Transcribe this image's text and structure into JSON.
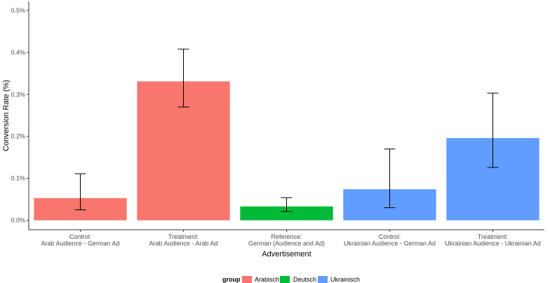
{
  "chart_data": {
    "type": "bar",
    "title": "",
    "xlabel": "Advertisement",
    "ylabel": "Conversion Rate (%)",
    "ylim": [
      0,
      0.5
    ],
    "y_ticks": [
      "0.0%",
      "0.1%",
      "0.2%",
      "0.3%",
      "0.4%",
      "0.5%"
    ],
    "y_tick_values": [
      0,
      0.1,
      0.2,
      0.3,
      0.4,
      0.5
    ],
    "categories": [
      [
        "Control:",
        "Arab Audience - German Ad"
      ],
      [
        "Treatment:",
        "Arab Audience - Arab Ad"
      ],
      [
        "Reference:",
        "German (Audience and Ad)"
      ],
      [
        "Control:",
        "Ukrainian Audience - German Ad"
      ],
      [
        "Treatment:",
        "Ukrainian Audience - Ukrainian Ad"
      ]
    ],
    "values": [
      0.053,
      0.331,
      0.033,
      0.074,
      0.196
    ],
    "error_low": [
      0.025,
      0.27,
      0.021,
      0.03,
      0.126
    ],
    "error_high": [
      0.111,
      0.408,
      0.054,
      0.17,
      0.303
    ],
    "groups": [
      "Arabisch",
      "Arabisch",
      "Deutsch",
      "Ukrainisch",
      "Ukrainisch"
    ],
    "grid": false,
    "legend": {
      "title": "group",
      "position": "bottom",
      "entries": [
        {
          "name": "Arabisch",
          "color": "#F8766D"
        },
        {
          "name": "Deutsch",
          "color": "#00BA38"
        },
        {
          "name": "Ukrainisch",
          "color": "#619CFF"
        }
      ]
    }
  }
}
